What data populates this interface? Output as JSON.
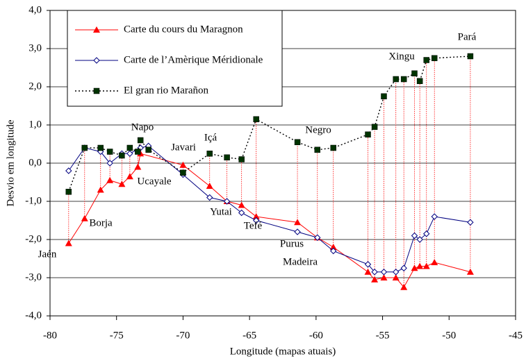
{
  "chart_data": {
    "type": "line",
    "xlabel": "Longitude (mapas atuais)",
    "ylabel": "Desvio em longitude",
    "xlim": [
      -80,
      -45
    ],
    "xticks": [
      -80,
      -75,
      -70,
      -65,
      -60,
      -55,
      -50,
      -45
    ],
    "ylim": [
      -4,
      4
    ],
    "yticks": [
      {
        "value": -4,
        "label": "-4,0"
      },
      {
        "value": -3,
        "label": "-3,0"
      },
      {
        "value": -2,
        "label": "-2,0"
      },
      {
        "value": -1,
        "label": "-1,0"
      },
      {
        "value": 0,
        "label": "0,0"
      },
      {
        "value": 1,
        "label": "1,0"
      },
      {
        "value": 2,
        "label": "2,0"
      },
      {
        "value": 3,
        "label": "3,0"
      },
      {
        "value": 4,
        "label": "4,0"
      }
    ],
    "grid": true,
    "legend": "upper left",
    "series": [
      {
        "name": "Carte du cours du Maragnon",
        "color": "#ff0000",
        "marker": "triangle",
        "line_style": "solid",
        "x": [
          -78.6,
          -77.4,
          -76.2,
          -75.5,
          -74.6,
          -74.0,
          -73.4,
          -73.2,
          -70.0,
          -68.0,
          -66.7,
          -65.6,
          -64.5,
          -61.4,
          -59.9,
          -58.7,
          -56.1,
          -55.6,
          -54.9,
          -54.0,
          -53.4,
          -52.6,
          -52.2,
          -51.7,
          -51.1,
          -48.4
        ],
        "values": [
          -2.1,
          -1.45,
          -0.7,
          -0.45,
          -0.55,
          -0.35,
          -0.1,
          0.25,
          -0.05,
          -0.6,
          -1.0,
          -1.1,
          -1.4,
          -1.55,
          -1.95,
          -2.2,
          -2.85,
          -3.05,
          -3.0,
          -3.0,
          -3.25,
          -2.75,
          -2.7,
          -2.7,
          -2.6,
          -2.85
        ]
      },
      {
        "name": "Carte de l’Amèrique Méridionale",
        "color": "#000080",
        "marker": "diamond",
        "line_style": "solid",
        "x": [
          -78.6,
          -77.4,
          -76.2,
          -75.5,
          -74.6,
          -74.0,
          -73.2,
          -72.6,
          -70.0,
          -68.0,
          -66.7,
          -65.6,
          -64.5,
          -61.4,
          -59.9,
          -58.7,
          -56.1,
          -55.6,
          -54.9,
          -54.0,
          -53.4,
          -52.6,
          -52.2,
          -51.7,
          -51.1,
          -48.4
        ],
        "values": [
          -0.2,
          0.4,
          0.3,
          0.0,
          0.25,
          0.25,
          0.4,
          0.45,
          -0.3,
          -0.9,
          -1.0,
          -1.3,
          -1.5,
          -1.8,
          -1.95,
          -2.3,
          -2.65,
          -2.85,
          -2.85,
          -2.85,
          -2.75,
          -1.9,
          -2.0,
          -1.85,
          -1.4,
          -1.55
        ]
      },
      {
        "name": "El gran rio Marañon",
        "color": "#003300",
        "marker": "square",
        "line_style": "dotted",
        "x": [
          -78.6,
          -77.4,
          -76.2,
          -75.5,
          -74.6,
          -74.0,
          -73.4,
          -73.2,
          -72.6,
          -70.0,
          -68.0,
          -66.7,
          -65.6,
          -64.5,
          -61.4,
          -59.9,
          -58.7,
          -56.1,
          -55.6,
          -54.9,
          -54.0,
          -53.4,
          -52.6,
          -52.2,
          -51.7,
          -51.1,
          -48.4
        ],
        "values": [
          -0.75,
          0.4,
          0.4,
          0.3,
          0.2,
          0.4,
          0.3,
          0.6,
          0.35,
          -0.25,
          0.25,
          0.15,
          0.1,
          1.15,
          0.55,
          0.35,
          0.4,
          0.75,
          0.95,
          1.75,
          2.2,
          2.2,
          2.35,
          2.15,
          2.7,
          2.75,
          2.8
        ]
      }
    ],
    "annotations": [
      "Jaén",
      "Borja",
      "Napo",
      "Ucayale",
      "Javari",
      "Içá",
      "Yutai",
      "Tefé",
      "Purus",
      "Madeira",
      "Negro",
      "Xingu",
      "Pará"
    ]
  }
}
